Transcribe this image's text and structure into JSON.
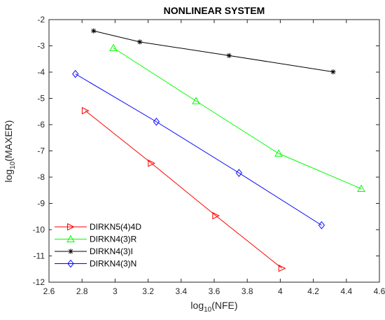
{
  "chart_data": {
    "type": "line",
    "title": "NONLINEAR SYSTEM",
    "xlabel": {
      "base": "log",
      "sub": "10",
      "rest": "(NFE)"
    },
    "ylabel": {
      "base": "log",
      "sub": "10",
      "rest": "(MAXER)"
    },
    "xlim": [
      2.6,
      4.6
    ],
    "ylim": [
      -12,
      -2
    ],
    "xticks": [
      2.6,
      2.8,
      3,
      3.2,
      3.4,
      3.6,
      3.8,
      4,
      4.2,
      4.4,
      4.6
    ],
    "xtick_labels": [
      "2.6",
      "2.8",
      "3",
      "3.2",
      "3.4",
      "3.6",
      "3.8",
      "4",
      "4.2",
      "4.4",
      "4.6"
    ],
    "yticks": [
      -12,
      -11,
      -10,
      -9,
      -8,
      -7,
      -6,
      -5,
      -4,
      -3,
      -2
    ],
    "ytick_labels": [
      "-12",
      "-11",
      "-10",
      "-9",
      "-8",
      "-7",
      "-6",
      "-5",
      "-4",
      "-3",
      "-2"
    ],
    "grid": false,
    "legend_position": "bottom-left",
    "series": [
      {
        "name": "DIRKN5(4)4D",
        "color": "#ff0000",
        "marker": "triangle-right",
        "x": [
          2.82,
          3.22,
          3.61,
          4.01
        ],
        "y": [
          -5.47,
          -7.47,
          -9.47,
          -11.47
        ]
      },
      {
        "name": "DIRKN4(3)R",
        "color": "#00ff00",
        "marker": "triangle-up",
        "x": [
          2.99,
          3.49,
          3.99,
          4.49
        ],
        "y": [
          -3.08,
          -5.1,
          -7.1,
          -8.44
        ]
      },
      {
        "name": "DIRKN4(3)I",
        "color": "#000000",
        "marker": "asterisk",
        "x": [
          2.87,
          3.15,
          3.69,
          4.32
        ],
        "y": [
          -2.43,
          -2.85,
          -3.37,
          -3.99
        ]
      },
      {
        "name": "DIRKN4(3)N",
        "color": "#0000ff",
        "marker": "diamond",
        "x": [
          2.76,
          3.25,
          3.75,
          4.25
        ],
        "y": [
          -4.07,
          -5.89,
          -7.84,
          -9.83
        ]
      }
    ]
  }
}
